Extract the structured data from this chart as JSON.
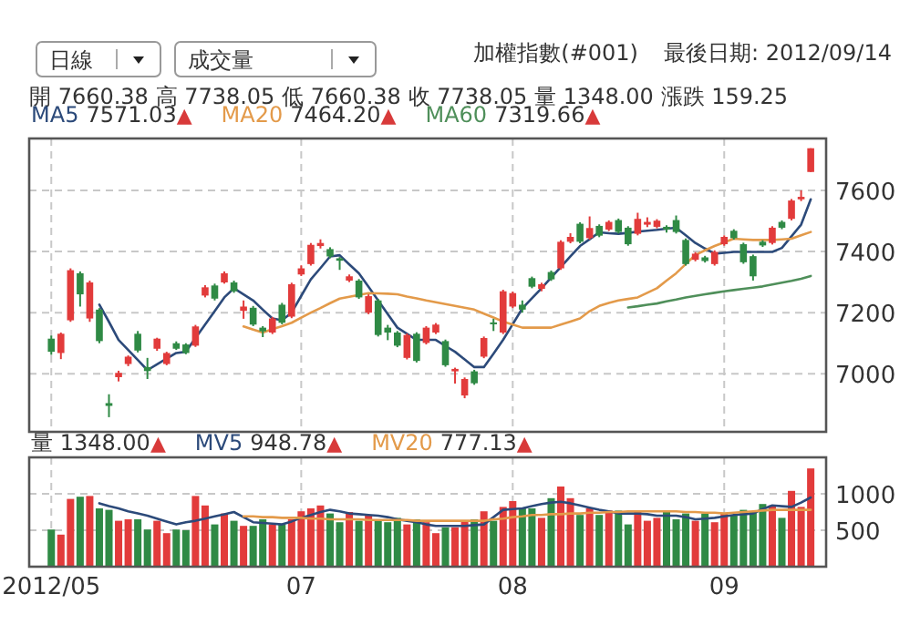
{
  "chart_data": [
    {
      "type": "candlestick",
      "title": "加權指數(#001)",
      "subtitle": "最後日期: 2012/09/14",
      "annotations": [
        "日線",
        "成交量",
        "開 7660.38   高 7738.05   低 7660.38   收 7738.05   量 1348.00   漲跌 159.25",
        "7571.03▲",
        "7464.20▲",
        "7319.66▲"
      ],
      "categories": [
        "2012/05",
        null,
        null,
        null,
        null,
        null,
        null,
        null,
        null,
        null,
        null,
        null,
        null,
        null,
        null,
        null,
        null,
        null,
        null,
        null,
        null,
        null,
        null,
        null,
        null,
        null,
        "07",
        null,
        null,
        null,
        null,
        null,
        null,
        null,
        null,
        null,
        null,
        null,
        null,
        null,
        null,
        null,
        null,
        null,
        null,
        null,
        null,
        null,
        "08",
        null,
        null,
        null,
        null,
        null,
        null,
        null,
        null,
        null,
        null,
        null,
        null,
        null,
        null,
        null,
        null,
        null,
        null,
        null,
        null,
        null,
        "09",
        null,
        null,
        null,
        null,
        null,
        null,
        null,
        null,
        null
      ],
      "ohlc": [
        [
          7115,
          7125,
          7062,
          7072
        ],
        [
          7068,
          7135,
          7048,
          7131
        ],
        [
          7175,
          7345,
          7170,
          7339
        ],
        [
          7329,
          7335,
          7220,
          7260
        ],
        [
          7181,
          7305,
          7170,
          7299
        ],
        [
          7210,
          7215,
          7100,
          7107
        ],
        [
          6904,
          6933,
          6858,
          6895
        ],
        [
          6989,
          7010,
          6975,
          7003
        ],
        [
          7032,
          7060,
          7025,
          7056
        ],
        [
          7131,
          7140,
          7070,
          7076
        ],
        [
          7022,
          7052,
          6983,
          7009
        ],
        [
          7082,
          7118,
          7075,
          7115
        ],
        [
          7032,
          7072,
          7028,
          7068
        ],
        [
          7100,
          7106,
          7078,
          7082
        ],
        [
          7096,
          7100,
          7064,
          7068
        ],
        [
          7092,
          7160,
          7088,
          7155
        ],
        [
          7256,
          7290,
          7250,
          7283
        ],
        [
          7289,
          7295,
          7240,
          7246
        ],
        [
          7299,
          7335,
          7295,
          7329
        ],
        [
          7299,
          7305,
          7265,
          7270
        ],
        [
          7206,
          7240,
          7180,
          7220
        ],
        [
          7216,
          7222,
          7156,
          7161
        ],
        [
          7151,
          7156,
          7120,
          7139
        ],
        [
          7135,
          7186,
          7130,
          7181
        ],
        [
          7226,
          7232,
          7162,
          7167
        ],
        [
          7187,
          7298,
          7182,
          7293
        ],
        [
          7325,
          7355,
          7320,
          7345
        ],
        [
          7359,
          7428,
          7354,
          7422
        ],
        [
          7418,
          7440,
          7410,
          7428
        ],
        [
          7408,
          7414,
          7378,
          7384
        ],
        [
          7378,
          7382,
          7340,
          7370
        ],
        [
          7305,
          7325,
          7300,
          7319
        ],
        [
          7305,
          7310,
          7245,
          7250
        ],
        [
          7200,
          7260,
          7195,
          7254
        ],
        [
          7240,
          7245,
          7122,
          7127
        ],
        [
          7151,
          7160,
          7110,
          7135
        ],
        [
          7135,
          7140,
          7087,
          7092
        ],
        [
          7052,
          7132,
          7047,
          7127
        ],
        [
          7131,
          7136,
          7037,
          7042
        ],
        [
          7101,
          7156,
          7096,
          7151
        ],
        [
          7135,
          7166,
          7130,
          7161
        ],
        [
          7107,
          7112,
          7023,
          7028
        ],
        [
          7008,
          7020,
          6968,
          7016
        ],
        [
          6929,
          6988,
          6920,
          6983
        ],
        [
          7008,
          7013,
          6964,
          6969
        ],
        [
          7056,
          7122,
          7051,
          7117
        ],
        [
          7168,
          7180,
          7140,
          7165
        ],
        [
          7135,
          7275,
          7130,
          7270
        ],
        [
          7220,
          7269,
          7215,
          7264
        ],
        [
          7226,
          7240,
          7200,
          7210
        ],
        [
          7313,
          7318,
          7280,
          7285
        ],
        [
          7278,
          7298,
          7270,
          7293
        ],
        [
          7333,
          7338,
          7304,
          7309
        ],
        [
          7345,
          7437,
          7340,
          7432
        ],
        [
          7432,
          7460,
          7427,
          7448
        ],
        [
          7491,
          7496,
          7427,
          7432
        ],
        [
          7444,
          7515,
          7439,
          7477
        ],
        [
          7484,
          7489,
          7447,
          7452
        ],
        [
          7472,
          7502,
          7467,
          7497
        ],
        [
          7503,
          7508,
          7459,
          7464
        ],
        [
          7478,
          7483,
          7419,
          7424
        ],
        [
          7458,
          7527,
          7453,
          7507
        ],
        [
          7488,
          7512,
          7480,
          7497
        ],
        [
          7481,
          7506,
          7476,
          7501
        ],
        [
          7481,
          7486,
          7462,
          7472
        ],
        [
          7503,
          7518,
          7459,
          7464
        ],
        [
          7438,
          7443,
          7354,
          7359
        ],
        [
          7373,
          7398,
          7368,
          7393
        ],
        [
          7381,
          7386,
          7364,
          7369
        ],
        [
          7359,
          7404,
          7354,
          7399
        ],
        [
          7424,
          7453,
          7419,
          7448
        ],
        [
          7468,
          7473,
          7439,
          7444
        ],
        [
          7424,
          7429,
          7360,
          7365
        ],
        [
          7385,
          7390,
          7305,
          7319
        ],
        [
          7432,
          7437,
          7415,
          7420
        ],
        [
          7428,
          7483,
          7423,
          7478
        ],
        [
          7497,
          7502,
          7473,
          7478
        ],
        [
          7507,
          7572,
          7502,
          7567
        ],
        [
          7571,
          7600,
          7565,
          7579
        ],
        [
          7660.38,
          7738.05,
          7660.38,
          7738.05
        ]
      ],
      "colors": [
        "#2f8a45",
        "#e23b3b",
        "#e23b3b",
        "#2f8a45",
        "#e23b3b",
        "#2f8a45",
        "#2f8a45",
        "#e23b3b",
        "#e23b3b",
        "#2f8a45",
        "#2f8a45",
        "#e23b3b",
        "#e23b3b",
        "#2f8a45",
        "#2f8a45",
        "#e23b3b",
        "#e23b3b",
        "#2f8a45",
        "#e23b3b",
        "#2f8a45",
        "#e23b3b",
        "#2f8a45",
        "#2f8a45",
        "#e23b3b",
        "#2f8a45",
        "#e23b3b",
        "#e23b3b",
        "#e23b3b",
        "#e23b3b",
        "#2f8a45",
        "#2f8a45",
        "#e23b3b",
        "#2f8a45",
        "#e23b3b",
        "#2f8a45",
        "#2f8a45",
        "#2f8a45",
        "#e23b3b",
        "#2f8a45",
        "#e23b3b",
        "#e23b3b",
        "#2f8a45",
        "#e23b3b",
        "#e23b3b",
        "#2f8a45",
        "#e23b3b",
        "#2f8a45",
        "#e23b3b",
        "#e23b3b",
        "#2f8a45",
        "#2f8a45",
        "#e23b3b",
        "#2f8a45",
        "#e23b3b",
        "#e23b3b",
        "#2f8a45",
        "#e23b3b",
        "#2f8a45",
        "#e23b3b",
        "#2f8a45",
        "#2f8a45",
        "#e23b3b",
        "#e23b3b",
        "#e23b3b",
        "#2f8a45",
        "#2f8a45",
        "#2f8a45",
        "#e23b3b",
        "#2f8a45",
        "#e23b3b",
        "#e23b3b",
        "#2f8a45",
        "#2f8a45",
        "#2f8a45",
        "#2f8a45",
        "#e23b3b",
        "#2f8a45",
        "#e23b3b",
        "#e23b3b",
        "#e23b3b"
      ],
      "series": [
        {
          "name": "MA5",
          "type": "line",
          "color": "#2c4a7a",
          "values": [
            null,
            null,
            null,
            null,
            null,
            7226,
            7170,
            7111,
            7078,
            7045,
            7012,
            7031,
            7050,
            7068,
            7072,
            7117,
            7161,
            7205,
            7250,
            7280,
            7260,
            7240,
            7210,
            7181,
            7175,
            7200,
            7255,
            7309,
            7346,
            7384,
            7388,
            7358,
            7329,
            7285,
            7240,
            7195,
            7151,
            7131,
            7111,
            7111,
            7111,
            7091,
            7072,
            7047,
            7022,
            7022,
            7066,
            7111,
            7162,
            7214,
            7247,
            7280,
            7315,
            7349,
            7384,
            7418,
            7440,
            7463,
            7460,
            7458,
            7461,
            7465,
            7468,
            7471,
            7475,
            7478,
            7453,
            7428,
            7410,
            7393,
            7396,
            7399,
            7399,
            7399,
            7399,
            7399,
            7412,
            7450,
            7488,
            7571
          ]
        },
        {
          "name": "MA20",
          "type": "line",
          "color": "#e39a4a",
          "values": [
            null,
            null,
            null,
            null,
            null,
            null,
            null,
            null,
            null,
            null,
            null,
            null,
            null,
            null,
            null,
            null,
            null,
            null,
            null,
            null,
            7155,
            7145,
            7135,
            7146,
            7156,
            7167,
            7184,
            7200,
            7215,
            7231,
            7246,
            7252,
            7258,
            7264,
            7263,
            7262,
            7260,
            7253,
            7247,
            7240,
            7234,
            7228,
            7222,
            7216,
            7210,
            7197,
            7184,
            7171,
            7161,
            7151,
            7151,
            7151,
            7151,
            7161,
            7171,
            7181,
            7205,
            7222,
            7232,
            7240,
            7245,
            7250,
            7265,
            7280,
            7305,
            7329,
            7359,
            7389,
            7404,
            7418,
            7430,
            7442,
            7440,
            7438,
            7438,
            7438,
            7440,
            7442,
            7453,
            7464
          ]
        },
        {
          "name": "MA60",
          "type": "line",
          "color": "#4f8f5a",
          "values": [
            null,
            null,
            null,
            null,
            null,
            null,
            null,
            null,
            null,
            null,
            null,
            null,
            null,
            null,
            null,
            null,
            null,
            null,
            null,
            null,
            null,
            null,
            null,
            null,
            null,
            null,
            null,
            null,
            null,
            null,
            null,
            null,
            null,
            null,
            null,
            null,
            null,
            null,
            null,
            null,
            null,
            null,
            null,
            null,
            null,
            null,
            null,
            null,
            null,
            null,
            null,
            null,
            null,
            null,
            null,
            null,
            null,
            null,
            null,
            null,
            7217,
            7221,
            7226,
            7230,
            7237,
            7243,
            7250,
            7255,
            7260,
            7265,
            7270,
            7274,
            7278,
            7282,
            7286,
            7292,
            7298,
            7304,
            7311,
            7320
          ]
        }
      ],
      "ylim": [
        6810,
        7770
      ],
      "yticks": [
        7000,
        7200,
        7400,
        7600
      ],
      "tick_labels": "y",
      "grid": true,
      "legend": "top left"
    },
    {
      "type": "bar",
      "annotations": [
        "量 1348.00▲",
        "948.78▲",
        "777.13▲"
      ],
      "categories": [
        "2012/05",
        null,
        null,
        null,
        null,
        null,
        null,
        null,
        null,
        null,
        null,
        null,
        null,
        null,
        null,
        null,
        null,
        null,
        null,
        null,
        null,
        null,
        null,
        null,
        null,
        null,
        "07",
        null,
        null,
        null,
        null,
        null,
        null,
        null,
        null,
        null,
        null,
        null,
        null,
        null,
        null,
        null,
        null,
        null,
        null,
        null,
        null,
        null,
        "08",
        null,
        null,
        null,
        null,
        null,
        null,
        null,
        null,
        null,
        null,
        null,
        null,
        null,
        null,
        null,
        null,
        null,
        null,
        null,
        null,
        null,
        "09",
        null,
        null,
        null,
        null,
        null,
        null,
        null,
        null,
        null
      ],
      "series": [
        {
          "type": "bar",
          "values": [
            510,
            440,
            930,
            960,
            970,
            800,
            780,
            630,
            650,
            650,
            510,
            630,
            460,
            510,
            500,
            970,
            840,
            580,
            730,
            630,
            560,
            560,
            650,
            580,
            580,
            650,
            760,
            800,
            840,
            730,
            610,
            750,
            630,
            700,
            650,
            610,
            670,
            580,
            650,
            610,
            460,
            540,
            540,
            630,
            650,
            760,
            630,
            820,
            900,
            800,
            800,
            670,
            940,
            1100,
            940,
            710,
            800,
            710,
            770,
            770,
            580,
            760,
            630,
            670,
            770,
            650,
            730,
            630,
            730,
            610,
            730,
            700,
            780,
            750,
            860,
            840,
            670,
            1040,
            820,
            1348
          ],
          "colors": [
            "#2f8a45",
            "#e23b3b",
            "#e23b3b",
            "#2f8a45",
            "#e23b3b",
            "#2f8a45",
            "#2f8a45",
            "#e23b3b",
            "#e23b3b",
            "#2f8a45",
            "#2f8a45",
            "#e23b3b",
            "#e23b3b",
            "#2f8a45",
            "#2f8a45",
            "#e23b3b",
            "#e23b3b",
            "#2f8a45",
            "#e23b3b",
            "#2f8a45",
            "#e23b3b",
            "#2f8a45",
            "#2f8a45",
            "#e23b3b",
            "#2f8a45",
            "#e23b3b",
            "#e23b3b",
            "#e23b3b",
            "#e23b3b",
            "#2f8a45",
            "#2f8a45",
            "#e23b3b",
            "#2f8a45",
            "#e23b3b",
            "#2f8a45",
            "#2f8a45",
            "#2f8a45",
            "#e23b3b",
            "#2f8a45",
            "#e23b3b",
            "#e23b3b",
            "#2f8a45",
            "#e23b3b",
            "#e23b3b",
            "#2f8a45",
            "#e23b3b",
            "#2f8a45",
            "#e23b3b",
            "#e23b3b",
            "#2f8a45",
            "#2f8a45",
            "#e23b3b",
            "#2f8a45",
            "#e23b3b",
            "#e23b3b",
            "#2f8a45",
            "#e23b3b",
            "#2f8a45",
            "#e23b3b",
            "#2f8a45",
            "#2f8a45",
            "#e23b3b",
            "#e23b3b",
            "#e23b3b",
            "#2f8a45",
            "#2f8a45",
            "#2f8a45",
            "#e23b3b",
            "#2f8a45",
            "#e23b3b",
            "#e23b3b",
            "#2f8a45",
            "#2f8a45",
            "#2f8a45",
            "#2f8a45",
            "#e23b3b",
            "#2f8a45",
            "#e23b3b",
            "#e23b3b",
            "#e23b3b"
          ]
        },
        {
          "name": "MV5",
          "type": "line",
          "color": "#2c4a7a",
          "values": [
            null,
            null,
            null,
            null,
            null,
            870,
            830,
            800,
            760,
            730,
            700,
            660,
            620,
            580,
            610,
            630,
            660,
            690,
            720,
            750,
            680,
            610,
            600,
            590,
            580,
            620,
            670,
            710,
            750,
            780,
            760,
            730,
            720,
            710,
            700,
            680,
            650,
            630,
            610,
            580,
            560,
            560,
            560,
            560,
            570,
            580,
            680,
            780,
            790,
            800,
            830,
            860,
            880,
            890,
            870,
            840,
            810,
            780,
            760,
            730,
            730,
            730,
            720,
            700,
            700,
            700,
            680,
            650,
            660,
            670,
            690,
            710,
            720,
            730,
            790,
            840,
            830,
            820,
            880,
            950
          ]
        },
        {
          "name": "MV20",
          "type": "line",
          "color": "#e39a4a",
          "values": [
            null,
            null,
            null,
            null,
            null,
            null,
            null,
            null,
            null,
            null,
            null,
            null,
            null,
            null,
            null,
            null,
            null,
            null,
            null,
            null,
            690,
            690,
            680,
            680,
            670,
            670,
            670,
            660,
            660,
            650,
            650,
            650,
            650,
            640,
            640,
            640,
            640,
            640,
            630,
            630,
            630,
            630,
            630,
            630,
            630,
            630,
            650,
            660,
            680,
            690,
            710,
            710,
            720,
            720,
            730,
            730,
            740,
            740,
            750,
            750,
            760,
            760,
            760,
            760,
            760,
            760,
            750,
            750,
            740,
            740,
            730,
            740,
            750,
            760,
            770,
            780,
            780,
            780,
            780,
            780
          ]
        }
      ],
      "ylim": [
        0,
        1500
      ],
      "yticks": [
        500,
        1000
      ],
      "grid": true,
      "legend": "top left"
    }
  ]
}
